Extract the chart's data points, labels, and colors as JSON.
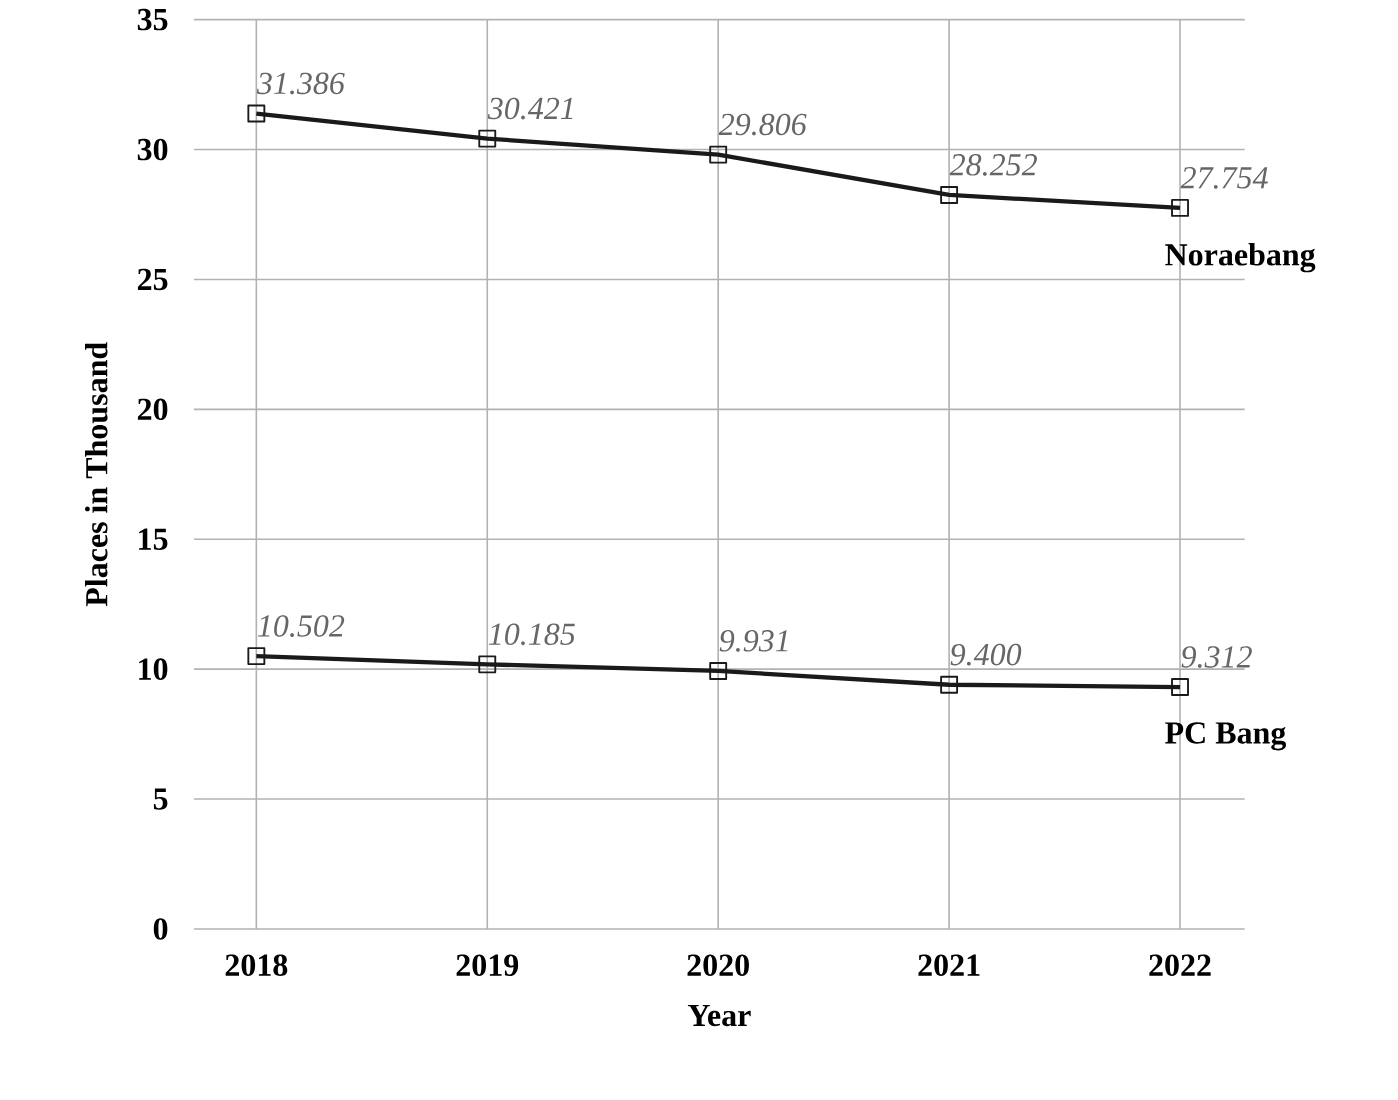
{
  "chart_data": {
    "type": "line",
    "xlabel": "Year",
    "ylabel": "Places in Thousand",
    "categories": [
      "2018",
      "2019",
      "2020",
      "2021",
      "2022"
    ],
    "series": [
      {
        "name": "Noraebang",
        "color": "#1a1a1a",
        "values": [
          31.386,
          30.421,
          29.806,
          28.252,
          27.754
        ],
        "value_labels": [
          "31.386",
          "30.421",
          "29.806",
          "28.252",
          "27.754"
        ]
      },
      {
        "name": "PC Bang",
        "color": "#1a1a1a",
        "values": [
          10.502,
          10.185,
          9.931,
          9.4,
          9.312
        ],
        "value_labels": [
          "10.502",
          "10.185",
          "9.931",
          "9.400",
          "9.312"
        ]
      }
    ],
    "ylim": [
      0,
      35
    ],
    "yticks": [
      0,
      5,
      10,
      15,
      20,
      25,
      30,
      35
    ],
    "grid": true,
    "legend": false,
    "marker": "square",
    "line_style": "solid"
  }
}
